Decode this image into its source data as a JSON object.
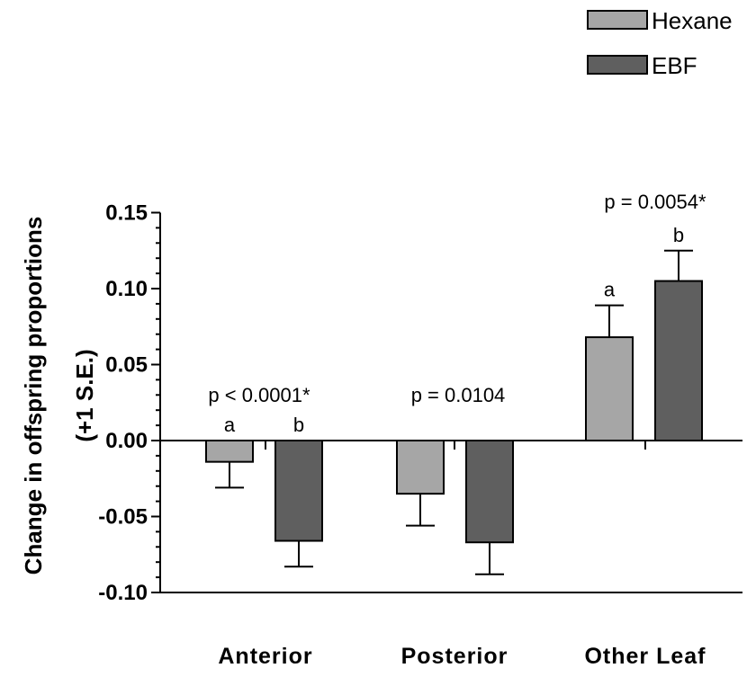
{
  "chart_data": {
    "type": "bar",
    "categories": [
      "Anterior",
      "Posterior",
      "Other Leaf"
    ],
    "series": [
      {
        "name": "Hexane",
        "color": "#a6a6a6",
        "values": [
          -0.014,
          -0.035,
          0.068
        ],
        "error_plus": [
          0.017,
          0.021,
          0.021
        ]
      },
      {
        "name": "EBF",
        "color": "#5f5f5f",
        "values": [
          -0.066,
          -0.067,
          0.105
        ],
        "error_plus": [
          0.017,
          0.021,
          0.02
        ]
      }
    ],
    "ylabel_line1": "Change in offspring proportions",
    "ylabel_line2": "(+1 S.E.)",
    "ylim": [
      -0.1,
      0.15
    ],
    "yticks": [
      "0.15",
      "0.10",
      "0.05",
      "0.00",
      "-0.05",
      "-0.10"
    ],
    "ytick_values": [
      0.15,
      0.1,
      0.05,
      0.0,
      -0.05,
      -0.1
    ],
    "pvalues": [
      "p < 0.0001*",
      "p = 0.0104",
      "p = 0.0054*"
    ],
    "letters": [
      [
        "a",
        "b"
      ],
      [
        "",
        ""
      ],
      [
        "a",
        "b"
      ]
    ],
    "legend_position": "top-right"
  }
}
